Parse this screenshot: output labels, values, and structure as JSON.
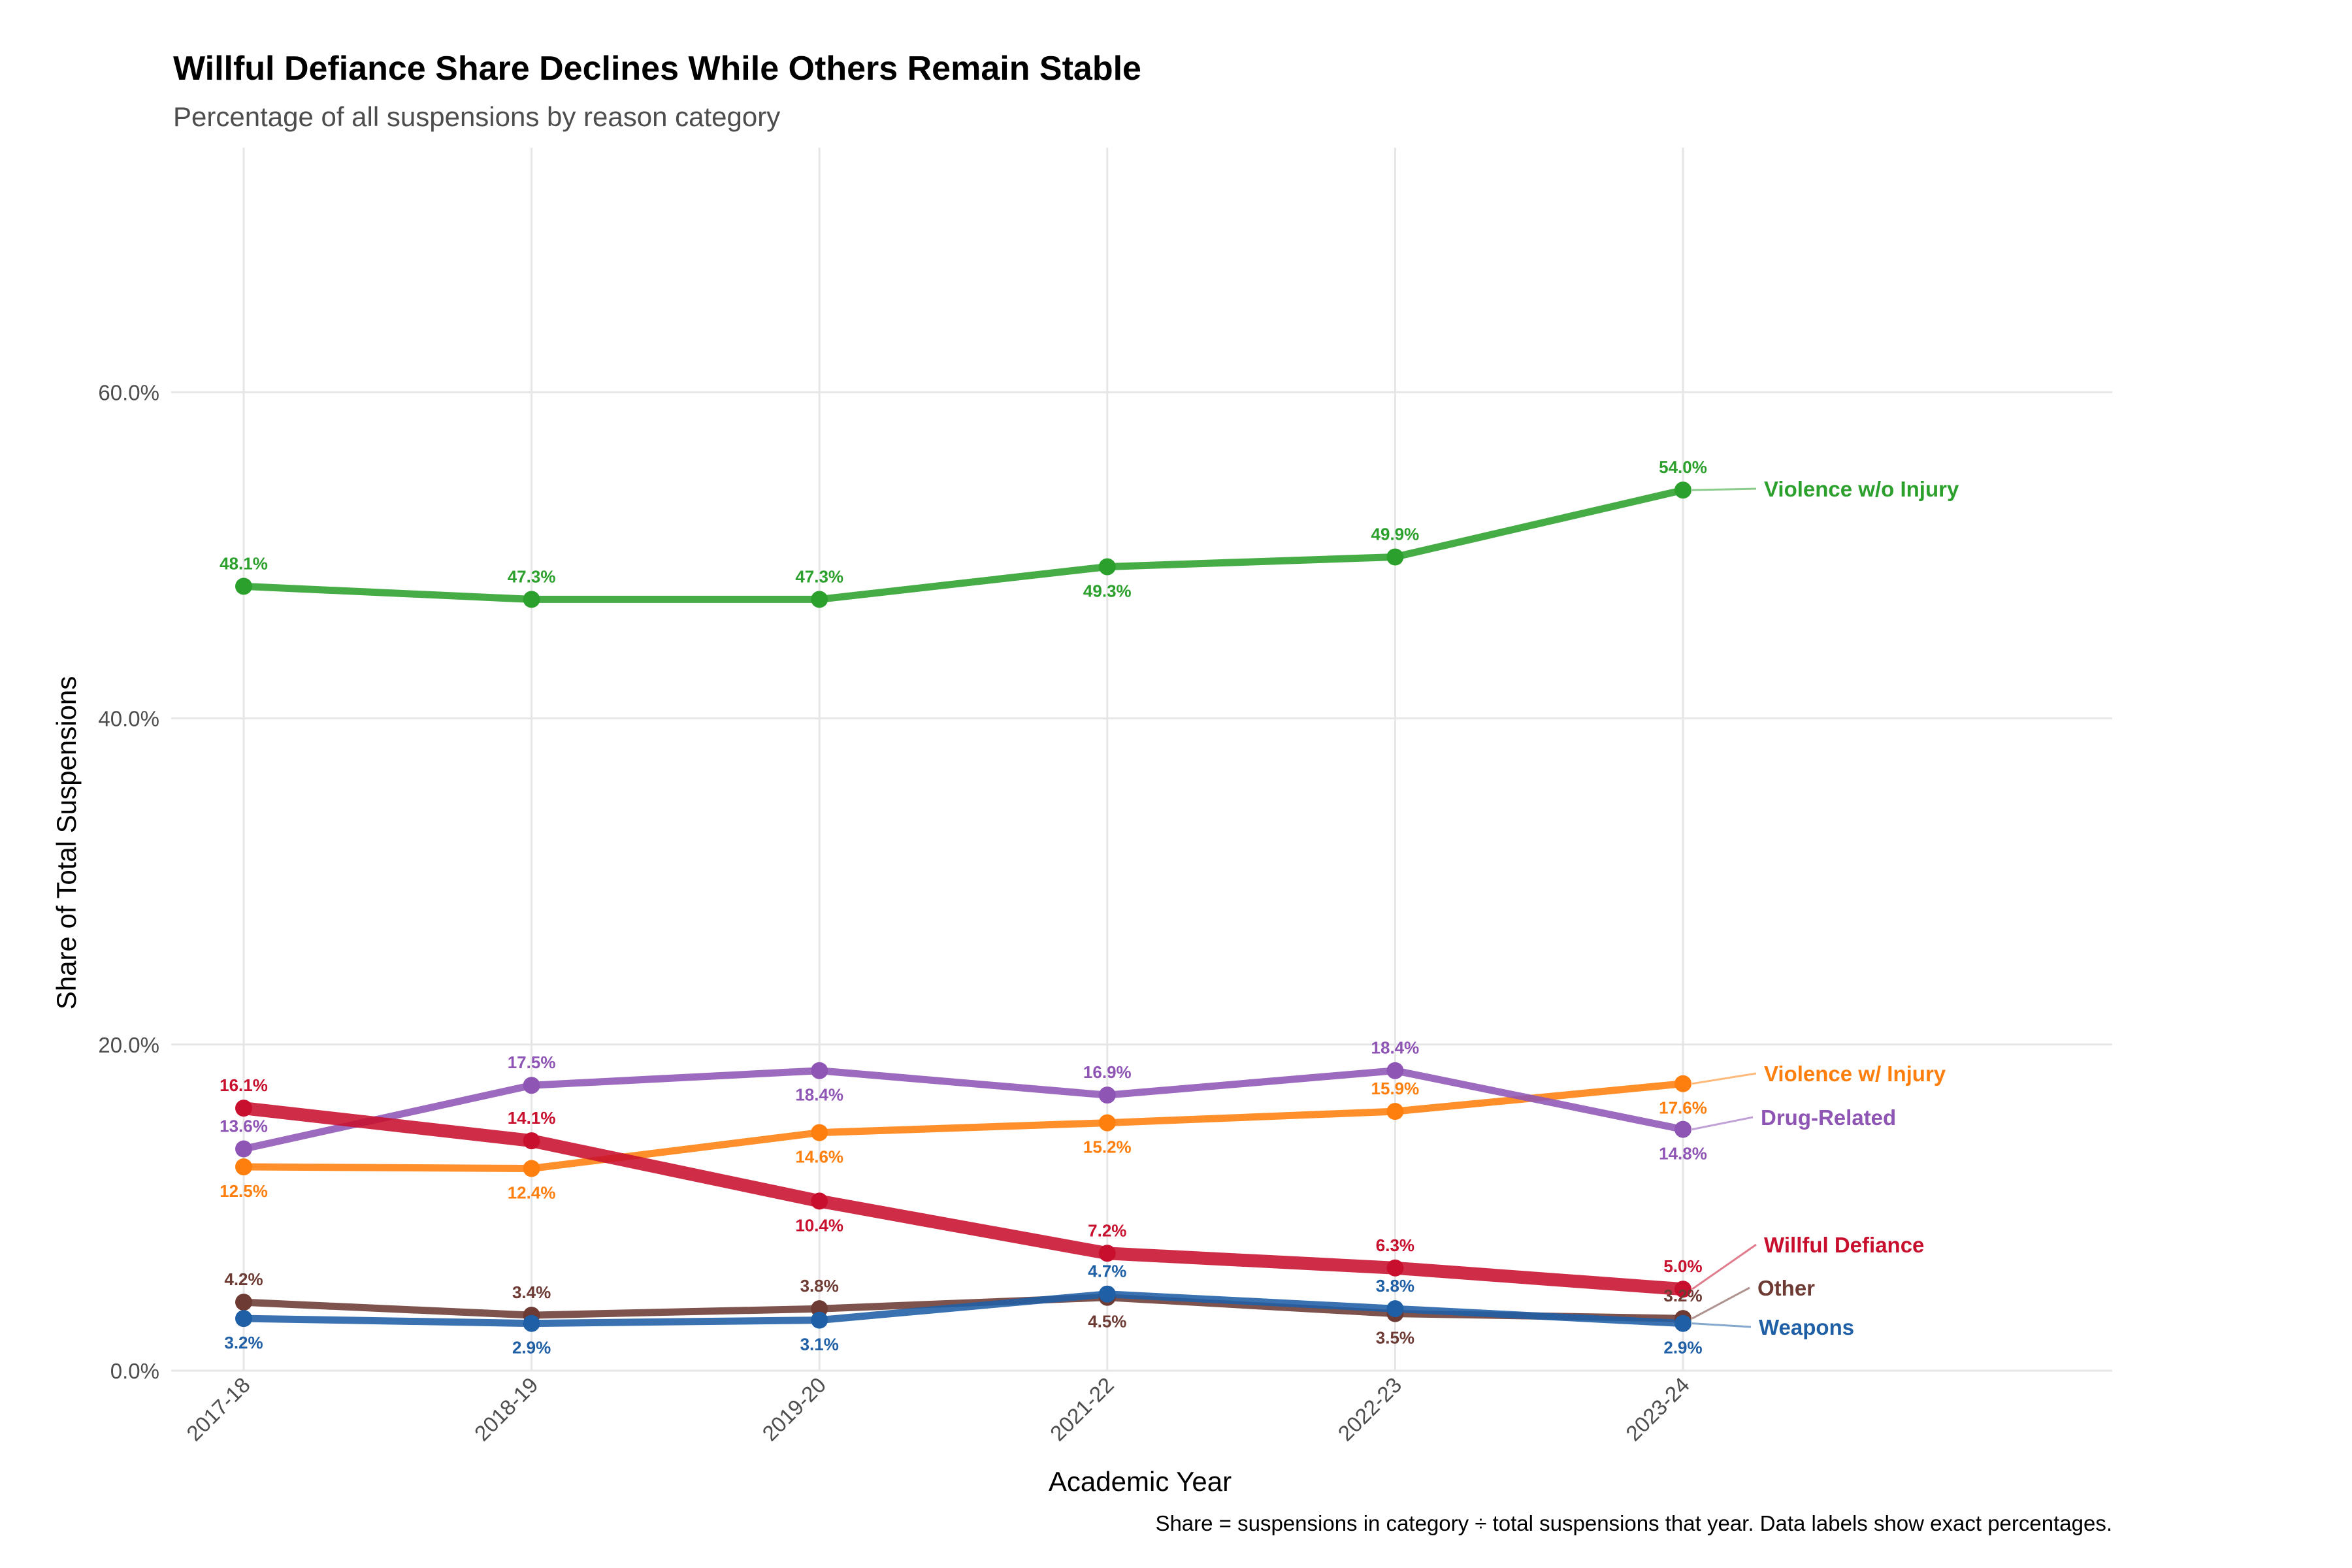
{
  "chart_data": {
    "type": "line",
    "title": "Willful Defiance Share Declines While Others Remain Stable",
    "subtitle": "Percentage of all suspensions by reason category",
    "xlabel": "Academic Year",
    "ylabel": "Share of Total Suspensions",
    "caption": "Share = suspensions in category ÷ total suspensions that year. Data labels show exact percentages.",
    "categories": [
      "2017-18",
      "2018-19",
      "2019-20",
      "2021-22",
      "2022-23",
      "2023-24"
    ],
    "ylim": [
      0,
      75
    ],
    "yticks": [
      0,
      20,
      40,
      60
    ],
    "ytick_labels": [
      "0.0%",
      "20.0%",
      "40.0%",
      "60.0%"
    ],
    "grid": true,
    "legend": "direct labels at right end of lines",
    "series": [
      {
        "name": "Violence w/o Injury",
        "color": "#2CA02C",
        "line_weight": "normal",
        "values": [
          48.1,
          47.3,
          47.3,
          49.3,
          49.9,
          54.0
        ],
        "labels": [
          "48.1%",
          "47.3%",
          "47.3%",
          "49.3%",
          "49.9%",
          "54.0%"
        ],
        "label_pos": [
          "above",
          "above",
          "above",
          "below",
          "above",
          "above"
        ]
      },
      {
        "name": "Violence w/ Injury",
        "color": "#FF7F0E",
        "line_weight": "normal",
        "values": [
          12.5,
          12.4,
          14.6,
          15.2,
          15.9,
          17.6
        ],
        "labels": [
          "12.5%",
          "12.4%",
          "14.6%",
          "15.2%",
          "15.9%",
          "17.6%"
        ],
        "label_pos": [
          "below",
          "below",
          "below",
          "below",
          "above",
          "below"
        ]
      },
      {
        "name": "Drug-Related",
        "color": "#8E55B5",
        "line_weight": "normal",
        "values": [
          13.6,
          17.5,
          18.4,
          16.9,
          18.4,
          14.8
        ],
        "labels": [
          "13.6%",
          "17.5%",
          "18.4%",
          "16.9%",
          "18.4%",
          "14.8%"
        ],
        "label_pos": [
          "above",
          "above",
          "below",
          "above",
          "above",
          "below"
        ]
      },
      {
        "name": "Willful Defiance",
        "color": "#C8102E",
        "line_weight": "heavy",
        "values": [
          16.1,
          14.1,
          10.4,
          7.2,
          6.3,
          5.0
        ],
        "labels": [
          "16.1%",
          "14.1%",
          "10.4%",
          "7.2%",
          "6.3%",
          "5.0%"
        ],
        "label_pos": [
          "above",
          "above",
          "below",
          "above",
          "above",
          "above"
        ]
      },
      {
        "name": "Other",
        "color": "#6D3B34",
        "line_weight": "normal",
        "values": [
          4.2,
          3.4,
          3.8,
          4.5,
          3.5,
          3.2
        ],
        "labels": [
          "4.2%",
          "3.4%",
          "3.8%",
          "4.5%",
          "3.5%",
          "3.2%"
        ],
        "label_pos": [
          "above",
          "above",
          "above",
          "below",
          "below",
          "above"
        ]
      },
      {
        "name": "Weapons",
        "color": "#1F5FA6",
        "line_weight": "normal",
        "values": [
          3.2,
          2.9,
          3.1,
          4.7,
          3.8,
          2.9
        ],
        "labels": [
          "3.2%",
          "2.9%",
          "3.1%",
          "4.7%",
          "3.8%",
          "2.9%"
        ],
        "label_pos": [
          "below",
          "below",
          "below",
          "above",
          "above",
          "below"
        ]
      }
    ]
  }
}
